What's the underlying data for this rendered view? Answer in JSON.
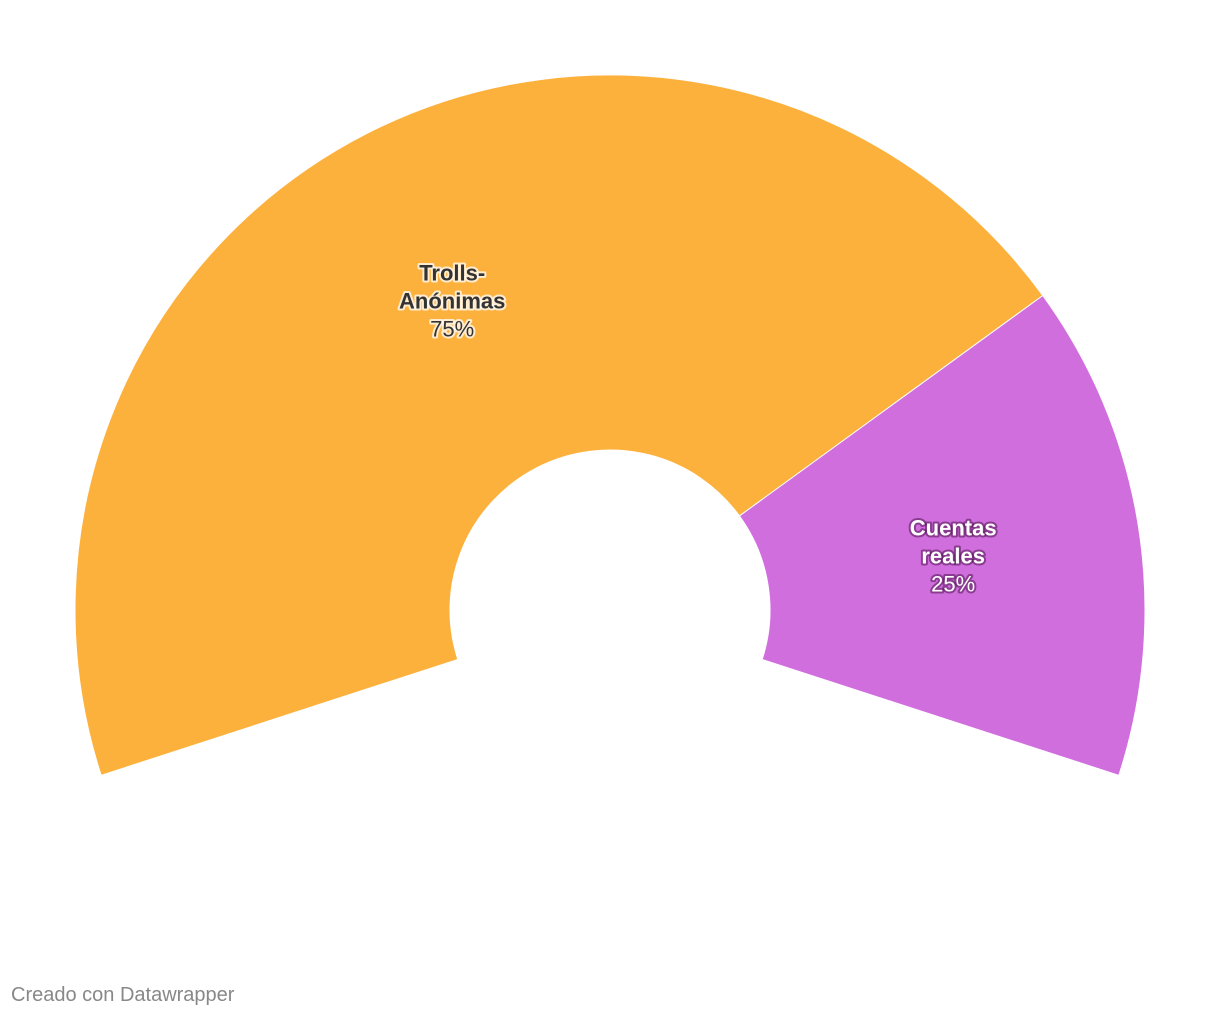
{
  "chart_data": {
    "type": "pie",
    "variant": "semi-donut",
    "slices": [
      {
        "name_lines": [
          "Trolls-",
          "Anónimas"
        ],
        "value": 75,
        "label": "75%",
        "color": "#FDB13D",
        "text_style": "dark"
      },
      {
        "name_lines": [
          "Cuentas",
          "reales"
        ],
        "value": 25,
        "label": "25%",
        "color": "#D06EDE",
        "text_style": "light"
      }
    ],
    "total": 100
  },
  "credit": "Creado con Datawrapper"
}
